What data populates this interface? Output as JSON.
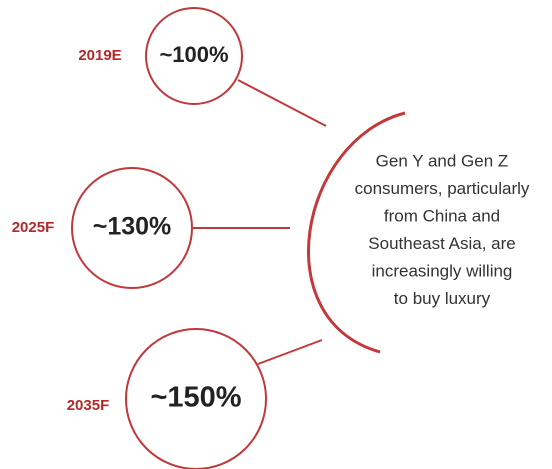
{
  "nodes": [
    {
      "year": "2019E",
      "label": "~100%"
    },
    {
      "year": "2025F",
      "label": "~130%"
    },
    {
      "year": "2035F",
      "label": "~150%"
    }
  ],
  "caption": [
    "Gen Y and Gen Z",
    "consumers, particularly",
    "from China and",
    "Southeast Asia, are",
    "increasingly willing",
    "to buy luxury"
  ]
}
